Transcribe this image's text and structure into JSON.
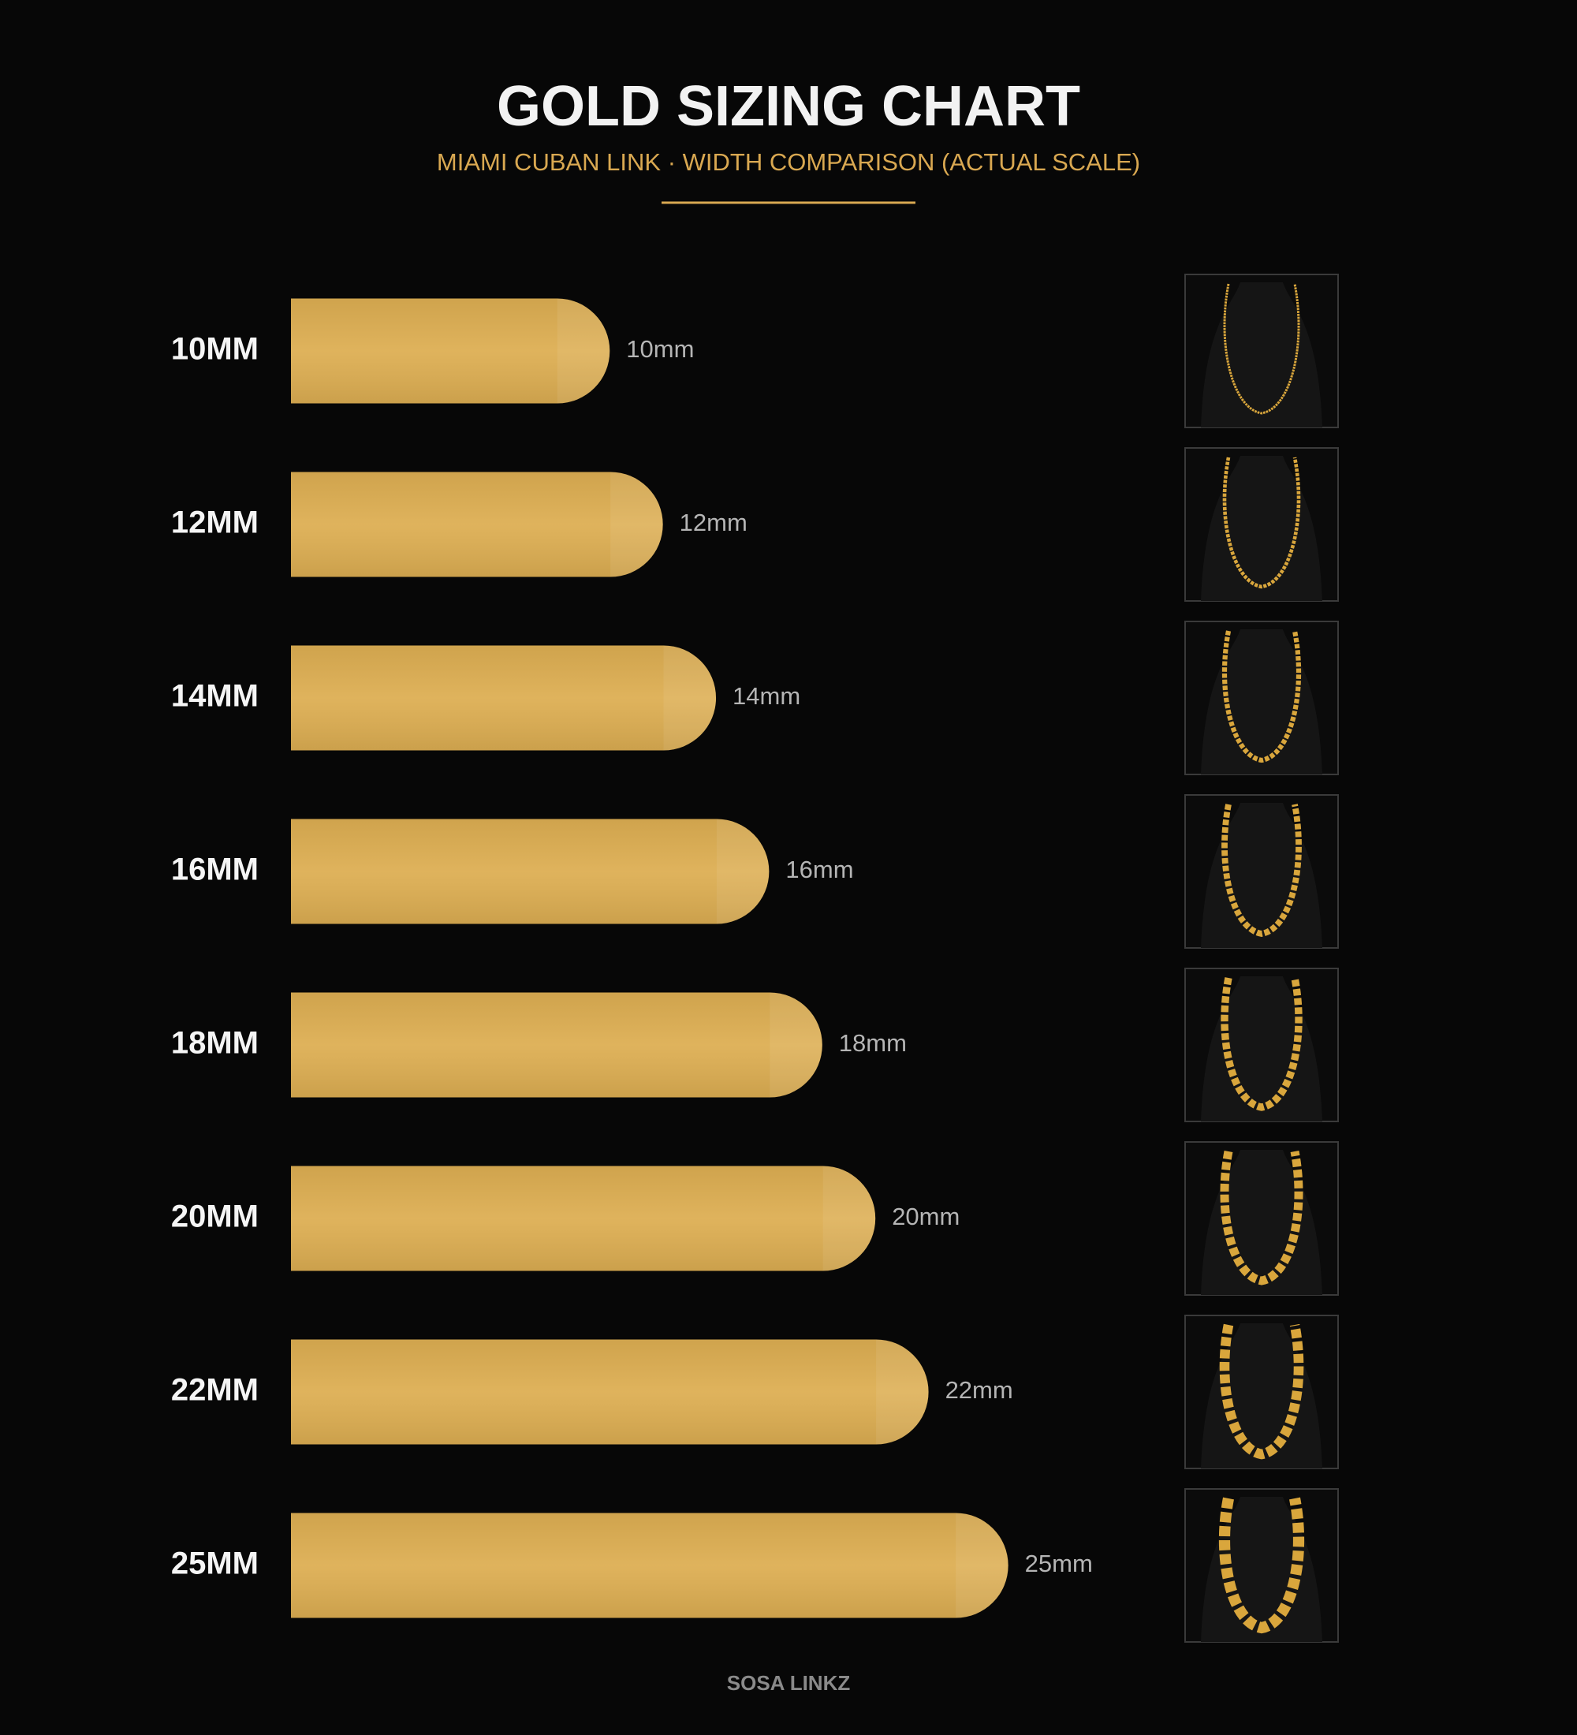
{
  "chart_data": {
    "type": "bar",
    "orientation": "horizontal",
    "title": "GOLD SIZING CHART",
    "subtitle": "MIAMI CUBAN LINK · WIDTH COMPARISON (ACTUAL SCALE)",
    "footer": "SOSA LINKZ",
    "categories": [
      "10MM",
      "12MM",
      "14MM",
      "16MM",
      "18MM",
      "20MM",
      "22MM",
      "25MM"
    ],
    "values": [
      10,
      12,
      14,
      16,
      18,
      20,
      22,
      25
    ],
    "value_labels": [
      "10mm",
      "12mm",
      "14mm",
      "16mm",
      "18mm",
      "20mm",
      "22mm",
      "25mm"
    ],
    "color": "#DDAE52",
    "xlim": [
      -2,
      40
    ]
  }
}
